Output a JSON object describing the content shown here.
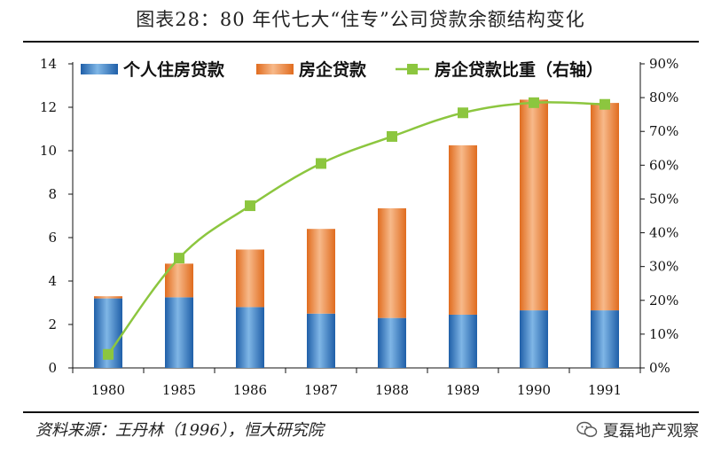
{
  "title": "图表28：80 年代七大“住专”公司贷款余额结构变化",
  "source": "资料来源：王丹林（1996），恒大研究院",
  "watermark": "夏磊地产观察",
  "colors": {
    "blue": "#2e75b6",
    "orange": "#ed7d31",
    "green": "#8cc63f"
  },
  "chart_data": {
    "type": "bar",
    "stacked": true,
    "categories": [
      "1980",
      "1985",
      "1986",
      "1987",
      "1988",
      "1989",
      "1990",
      "1991"
    ],
    "series": [
      {
        "name": "个人住房贷款",
        "type": "bar",
        "axis": "left",
        "values": [
          3.2,
          3.25,
          2.8,
          2.5,
          2.3,
          2.45,
          2.65,
          2.65
        ]
      },
      {
        "name": "房企贷款",
        "type": "bar",
        "axis": "left",
        "values": [
          0.1,
          1.55,
          2.65,
          3.9,
          5.05,
          7.8,
          9.7,
          9.55
        ]
      },
      {
        "name": "房企贷款比重（右轴）",
        "type": "line",
        "axis": "right",
        "values": [
          0.04,
          0.325,
          0.48,
          0.605,
          0.685,
          0.755,
          0.785,
          0.78
        ]
      }
    ],
    "y_left": {
      "min": 0,
      "max": 14,
      "ticks": [
        "0",
        "2",
        "4",
        "6",
        "8",
        "10",
        "12",
        "14"
      ]
    },
    "y_right": {
      "min": 0,
      "max": 0.9,
      "ticks": [
        "0%",
        "10%",
        "20%",
        "30%",
        "40%",
        "50%",
        "60%",
        "70%",
        "80%",
        "90%"
      ]
    },
    "legend": [
      "个人住房贷款",
      "房企贷款",
      "房企贷款比重（右轴）"
    ]
  }
}
